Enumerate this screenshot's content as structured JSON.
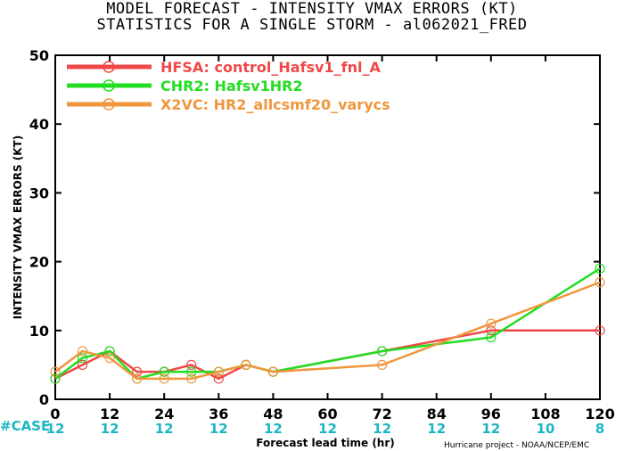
{
  "title_line1": "MODEL FORECAST - INTENSITY VMAX ERRORS (KT)",
  "title_line2": "STATISTICS FOR A SINGLE STORM - al062021_FRED",
  "case_label": "#CASE",
  "case_counts": [
    "12",
    "12",
    "12",
    "12",
    "12",
    "12",
    "12",
    "12",
    "12",
    "10",
    "8"
  ],
  "credit": "Hurricane project - NOAA/NCEP/EMC",
  "chart_data": {
    "type": "line",
    "title": "MODEL FORECAST - INTENSITY VMAX ERRORS (KT)",
    "subtitle": "STATISTICS FOR A SINGLE STORM - al062021_FRED",
    "xlabel": "Forecast lead time (hr)",
    "ylabel": "INTENSITY VMAX ERRORS (KT)",
    "xlim": [
      0,
      120
    ],
    "ylim": [
      0,
      50
    ],
    "xticks": [
      0,
      12,
      24,
      36,
      48,
      60,
      72,
      84,
      96,
      108,
      120
    ],
    "yticks": [
      0,
      10,
      20,
      30,
      40,
      50
    ],
    "grid": false,
    "legend_position": "top-left",
    "series": [
      {
        "name": "HFSA: control_Hafsv1_fnl_A",
        "color": "#f04848",
        "x": [
          0,
          6,
          12,
          18,
          24,
          30,
          36,
          42,
          48,
          72,
          96,
          120
        ],
        "values": [
          3,
          5,
          7,
          4,
          4,
          5,
          3,
          5,
          4,
          7,
          10,
          10
        ]
      },
      {
        "name": "CHR2: Hafsv1HR2",
        "color": "#22dd22",
        "x": [
          0,
          6,
          12,
          18,
          24,
          30,
          36,
          42,
          48,
          72,
          96,
          120
        ],
        "values": [
          3,
          6,
          7,
          3,
          4,
          4,
          4,
          5,
          4,
          7,
          9,
          19
        ]
      },
      {
        "name": "X2VC: HR2_allcsmf20_varycs",
        "color": "#f0963c",
        "x": [
          0,
          6,
          12,
          18,
          24,
          30,
          36,
          42,
          48,
          72,
          96,
          120
        ],
        "values": [
          4,
          7,
          6,
          3,
          3,
          3,
          4,
          5,
          4,
          5,
          11,
          17
        ]
      }
    ]
  }
}
